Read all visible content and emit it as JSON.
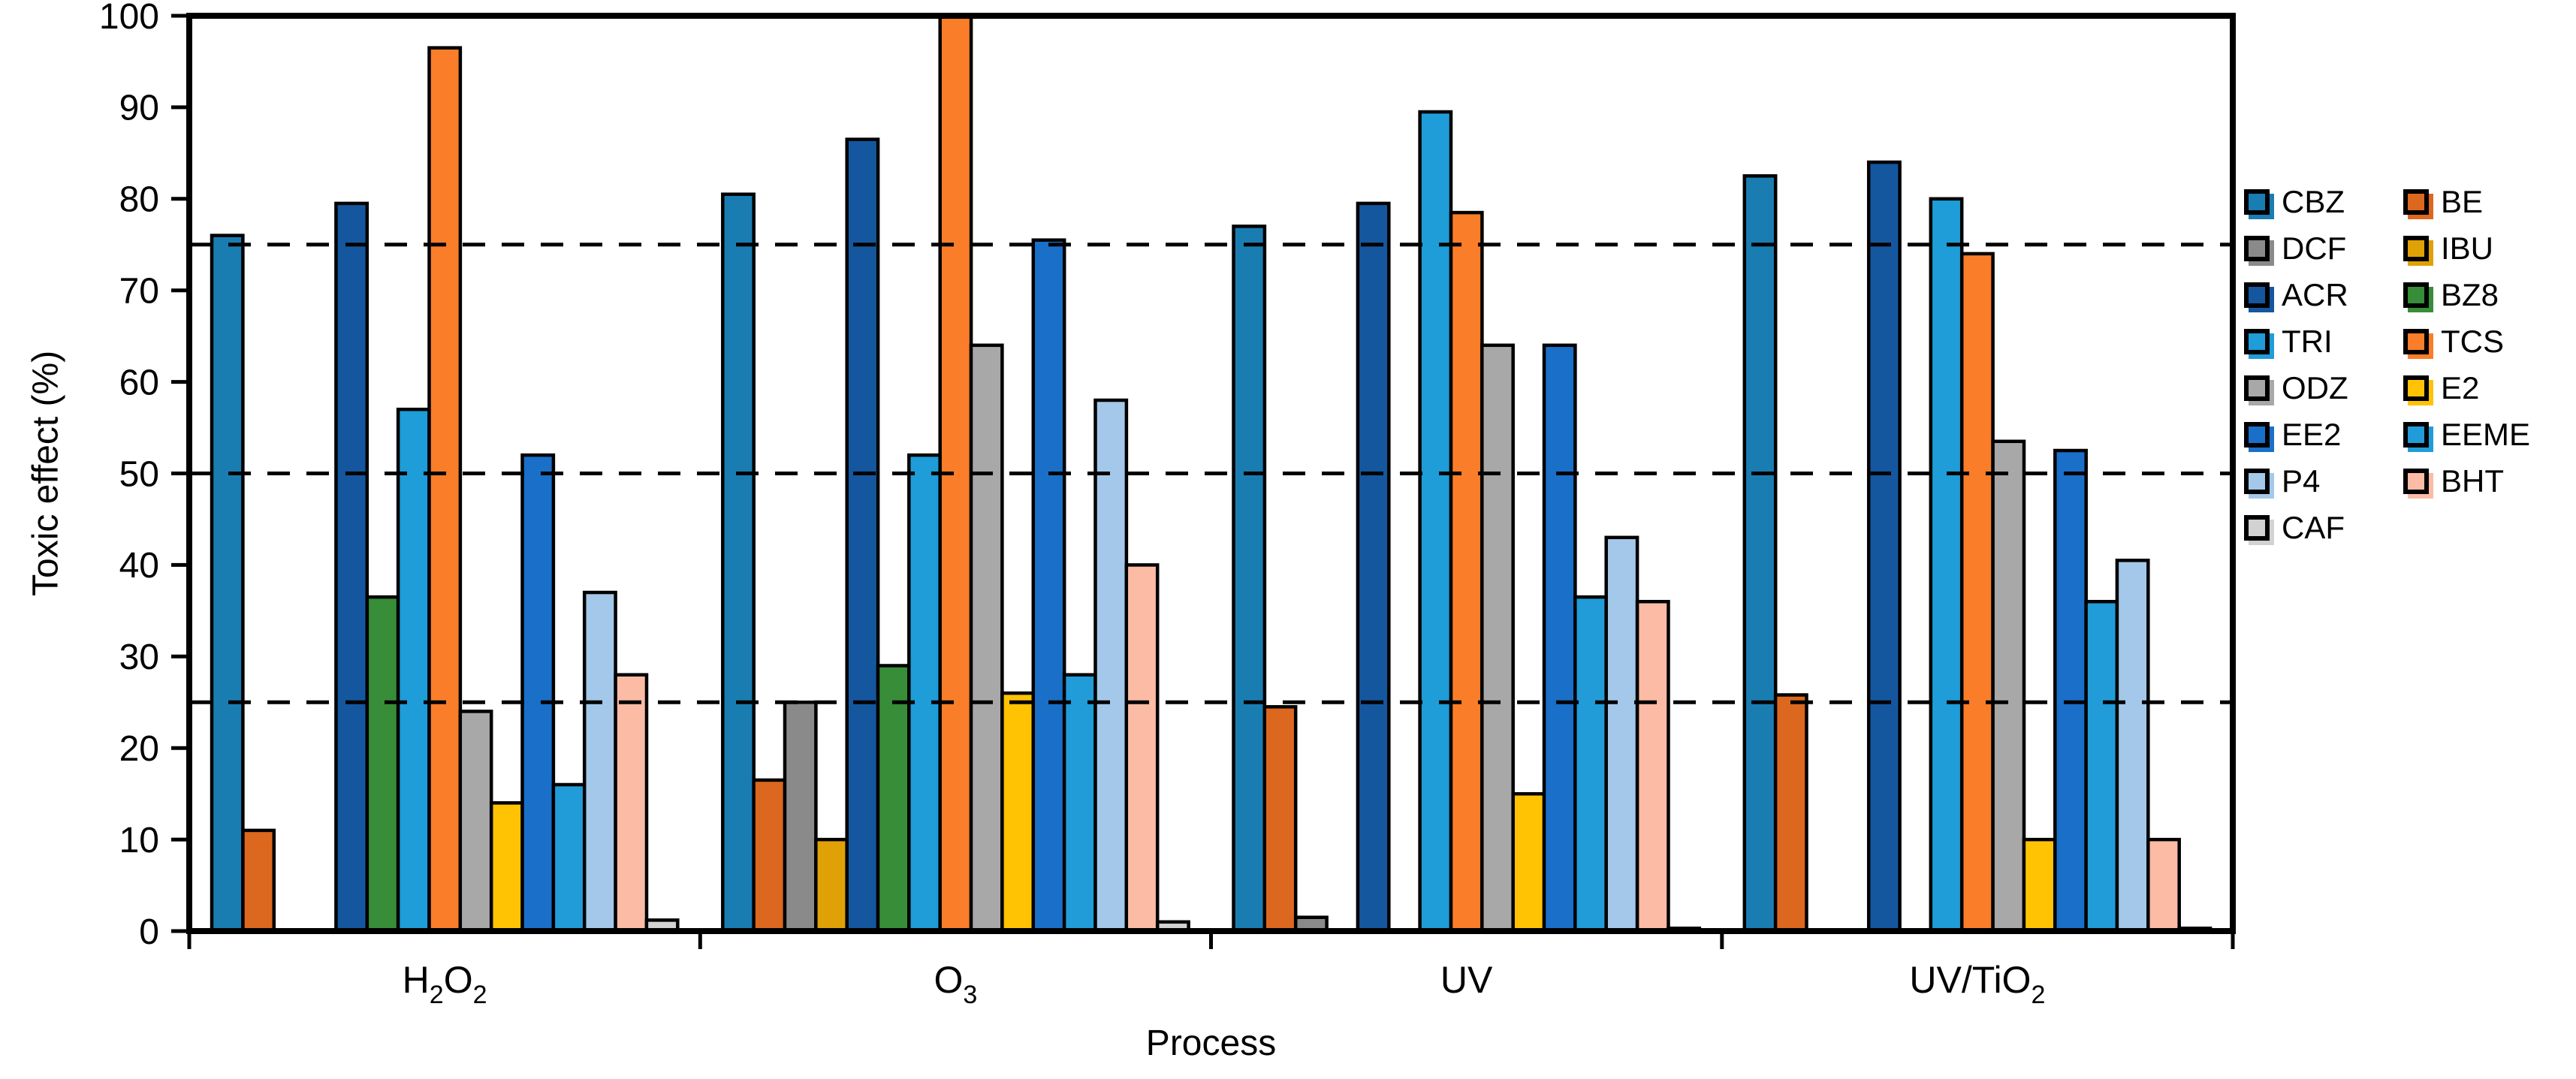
{
  "chart_data": {
    "type": "bar",
    "title": "",
    "xlabel": "Process",
    "ylabel": "Toxic effect (%)",
    "ylim": [
      0,
      100
    ],
    "yticks": [
      0,
      10,
      20,
      30,
      40,
      50,
      60,
      70,
      80,
      90,
      100
    ],
    "dashed_gridlines_at": [
      25,
      50,
      75
    ],
    "grid": "dashed horizontal at 25/50/75 only",
    "legend_position": "right",
    "categories": [
      "H2O2",
      "O3",
      "UV",
      "UV/TiO2"
    ],
    "category_labels": [
      [
        {
          "t": "H"
        },
        {
          "t": "2",
          "sub": true
        },
        {
          "t": "O"
        },
        {
          "t": "2",
          "sub": true
        }
      ],
      [
        {
          "t": "O"
        },
        {
          "t": "3",
          "sub": true
        }
      ],
      [
        {
          "t": "UV"
        }
      ],
      [
        {
          "t": "UV/TiO"
        },
        {
          "t": "2",
          "sub": true
        }
      ]
    ],
    "series": [
      {
        "name": "CBZ",
        "color": "#1A7DB2",
        "values": [
          76,
          80.5,
          77,
          82.5
        ]
      },
      {
        "name": "BE",
        "color": "#DC671E",
        "values": [
          11,
          16.5,
          24.5,
          25.8
        ]
      },
      {
        "name": "DCF",
        "color": "#8A8A8A",
        "values": [
          0,
          25,
          1.5,
          0
        ]
      },
      {
        "name": "IBU",
        "color": "#DFA106",
        "values": [
          0,
          10,
          0,
          0
        ]
      },
      {
        "name": "ACR",
        "color": "#14579F",
        "values": [
          79.5,
          86.5,
          79.5,
          84
        ]
      },
      {
        "name": "BZ8",
        "color": "#378D38",
        "values": [
          36.5,
          29,
          0,
          0
        ]
      },
      {
        "name": "TRI",
        "color": "#1E9DD8",
        "values": [
          57,
          52,
          89.5,
          80
        ]
      },
      {
        "name": "TCS",
        "color": "#FA7D29",
        "values": [
          96.5,
          100,
          78.5,
          74
        ]
      },
      {
        "name": "ODZ",
        "color": "#A8A8A8",
        "values": [
          24,
          64,
          64,
          53.5
        ]
      },
      {
        "name": "E2",
        "color": "#FFC303",
        "values": [
          14,
          26,
          15,
          10
        ]
      },
      {
        "name": "EE2",
        "color": "#1A6FC8",
        "values": [
          52,
          75.5,
          64,
          52.5
        ]
      },
      {
        "name": "EEME",
        "color": "#219CD8",
        "values": [
          16,
          28,
          36.5,
          36
        ]
      },
      {
        "name": "P4",
        "color": "#A4C8EA",
        "values": [
          37,
          58,
          43,
          40.5
        ]
      },
      {
        "name": "BHT",
        "color": "#FBBBA4",
        "values": [
          28,
          40,
          36,
          10
        ]
      },
      {
        "name": "CAF",
        "color": "#D2D2D2",
        "values": [
          1.2,
          1,
          0.3,
          0.3
        ]
      }
    ],
    "legend_columns": [
      [
        "CBZ",
        "DCF",
        "ACR",
        "TRI",
        "ODZ",
        "EE2",
        "P4",
        "CAF"
      ],
      [
        "BE",
        "IBU",
        "BZ8",
        "TCS",
        "E2",
        "EEME",
        "BHT"
      ]
    ]
  }
}
